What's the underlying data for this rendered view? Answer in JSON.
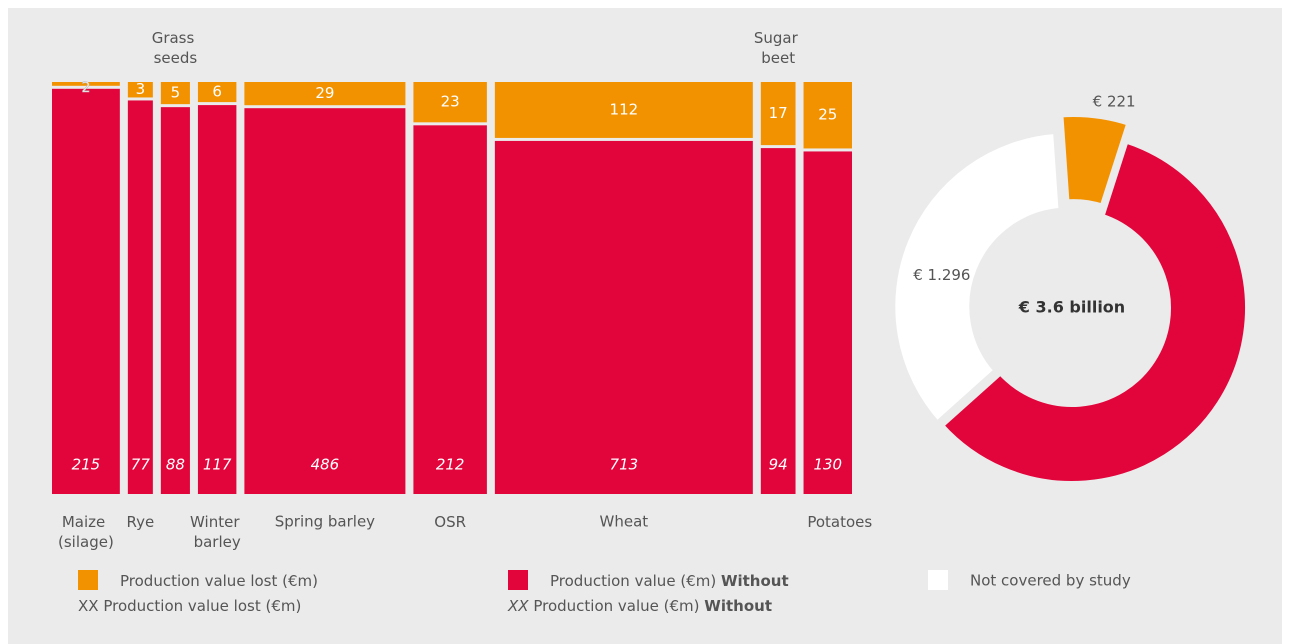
{
  "chart_data": [
    {
      "type": "marimekko",
      "categories": [
        "Maize (silage)",
        "Rye",
        "Grass seeds",
        "Winter barley",
        "Spring barley",
        "OSR",
        "Wheat",
        "Sugar beet",
        "Potatoes"
      ],
      "series": [
        {
          "name": "Production value lost (€m)",
          "color": "#f39200",
          "values": [
            2,
            3,
            5,
            6,
            29,
            23,
            112,
            17,
            25
          ]
        },
        {
          "name": "Production value (€m)",
          "name_emphasis": "Without",
          "color": "#e2053c",
          "values": [
            215,
            77,
            88,
            117,
            486,
            212,
            713,
            94,
            130
          ]
        }
      ],
      "legend_sample": "XX"
    },
    {
      "type": "donut",
      "categories": [
        null,
        null,
        "Not covered by study"
      ],
      "values": [
        221,
        2132,
        1296
      ],
      "value_labels": [
        "€ 221",
        null,
        "€ 1.296"
      ],
      "colors": [
        "#f39200",
        "#e2053c",
        "#ffffff"
      ],
      "center_label": "€ 3.6 billion"
    }
  ]
}
